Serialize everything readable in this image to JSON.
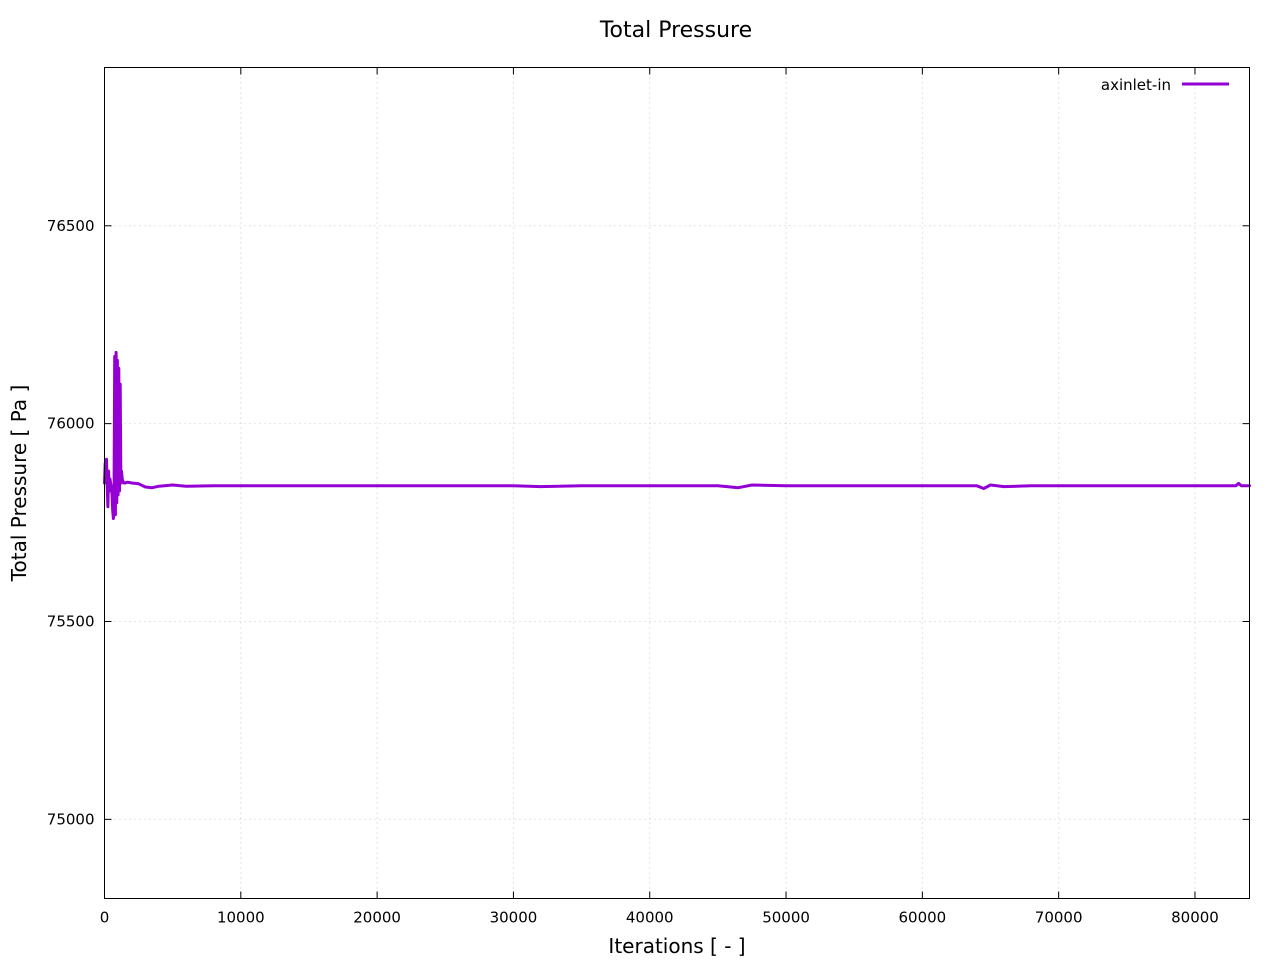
{
  "chart_data": {
    "type": "line",
    "title": "Total Pressure",
    "xlabel": "Iterations [ - ]",
    "ylabel": "Total Pressure [ Pa ]",
    "xlim": [
      0,
      84000
    ],
    "ylim": [
      74800,
      76900
    ],
    "xticks": [
      0,
      10000,
      20000,
      30000,
      40000,
      50000,
      60000,
      70000,
      80000
    ],
    "yticks": [
      75000,
      75500,
      76000,
      76500
    ],
    "grid": true,
    "legend_position": "top-right",
    "series": [
      {
        "name": "axinlet-in",
        "color": "#9400d3",
        "x": [
          0,
          50,
          100,
          150,
          200,
          250,
          300,
          350,
          400,
          450,
          500,
          550,
          600,
          650,
          700,
          750,
          800,
          850,
          900,
          950,
          1000,
          1050,
          1100,
          1150,
          1200,
          1250,
          1300,
          1350,
          1400,
          1500,
          1700,
          2000,
          2500,
          3000,
          3500,
          4000,
          5000,
          6000,
          8000,
          10000,
          15000,
          20000,
          25000,
          30000,
          32000,
          35000,
          40000,
          45000,
          46500,
          47500,
          50000,
          55000,
          60000,
          64000,
          64500,
          65000,
          66000,
          68000,
          70000,
          75000,
          80000,
          83000,
          83200,
          83400,
          84000
        ],
        "y": [
          75850,
          75900,
          75860,
          75910,
          75840,
          75790,
          75880,
          75830,
          75860,
          75850,
          75840,
          75820,
          75780,
          75760,
          75800,
          76170,
          75770,
          76180,
          75800,
          76160,
          75820,
          76140,
          75830,
          76100,
          75850,
          75880,
          75860,
          75855,
          75850,
          75850,
          75852,
          75850,
          75848,
          75840,
          75838,
          75842,
          75845,
          75842,
          75843,
          75843,
          75843,
          75843,
          75843,
          75843,
          75841,
          75843,
          75843,
          75843,
          75838,
          75845,
          75843,
          75843,
          75843,
          75843,
          75836,
          75845,
          75841,
          75843,
          75843,
          75843,
          75843,
          75843,
          75849,
          75843,
          75843
        ]
      }
    ]
  }
}
